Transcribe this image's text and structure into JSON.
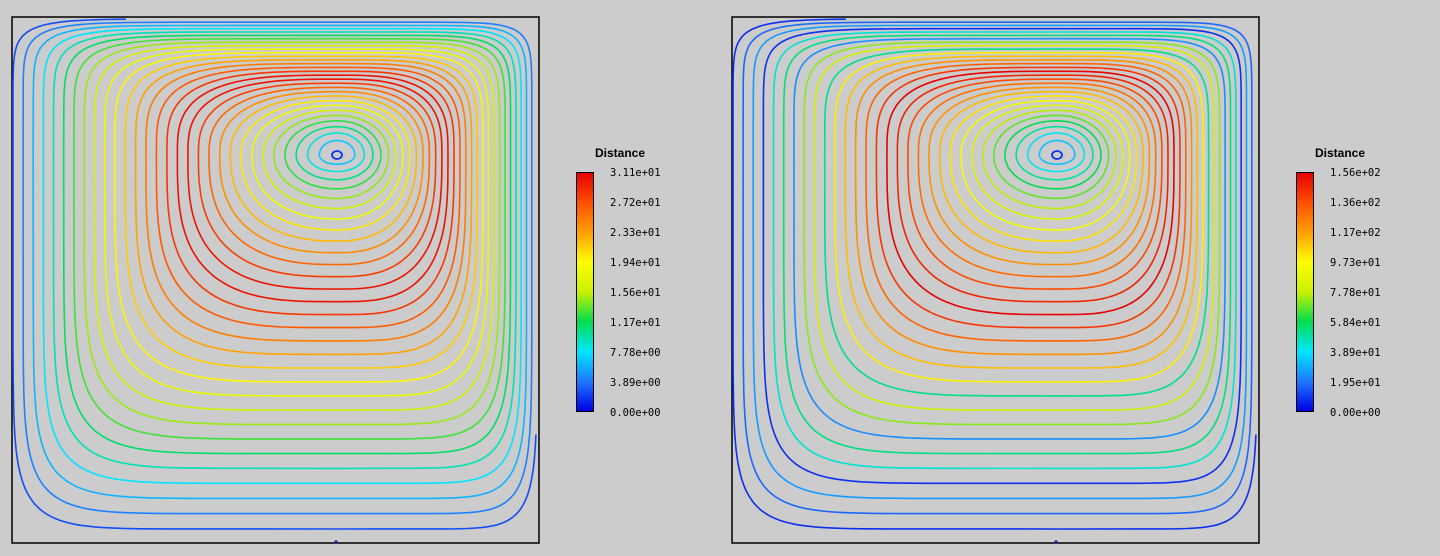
{
  "panels": [
    {
      "id": "left",
      "legend": {
        "title": "Distance",
        "ticks": [
          "3.11e+01",
          "2.72e+01",
          "2.33e+01",
          "1.94e+01",
          "1.56e+01",
          "1.17e+01",
          "7.78e+00",
          "3.89e+00",
          "0.00e+00"
        ]
      }
    },
    {
      "id": "right",
      "legend": {
        "title": "Distance",
        "ticks": [
          "1.56e+02",
          "1.36e+02",
          "1.17e+02",
          "9.73e+01",
          "7.78e+01",
          "5.84e+01",
          "3.89e+01",
          "1.95e+01",
          "0.00e+00"
        ]
      }
    }
  ],
  "colormap": {
    "stops": [
      "#0000e6",
      "#1e78ff",
      "#00e6ff",
      "#00dc50",
      "#c8f000",
      "#ffff00",
      "#ffa000",
      "#ff5000",
      "#e60000"
    ]
  },
  "frame_color": "#000000",
  "background_color": "#cccccc"
}
